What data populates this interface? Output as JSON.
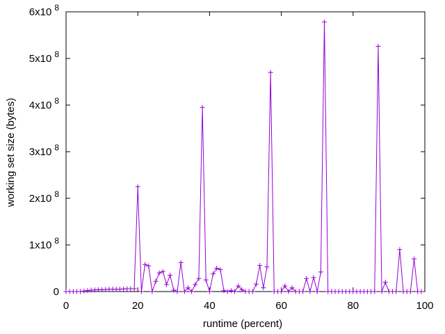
{
  "chart_data": {
    "type": "line",
    "xlabel": "runtime (percent)",
    "ylabel": "working set size (bytes)",
    "xlim": [
      0,
      100
    ],
    "ylim": [
      0,
      600000000
    ],
    "x_ticks": [
      "0",
      "20",
      "40",
      "60",
      "80",
      "100"
    ],
    "y_ticks": [
      {
        "base": "0",
        "exp": ""
      },
      {
        "base": "1x10",
        "exp": "8"
      },
      {
        "base": "2x10",
        "exp": "8"
      },
      {
        "base": "3x10",
        "exp": "8"
      },
      {
        "base": "4x10",
        "exp": "8"
      },
      {
        "base": "5x10",
        "exp": "8"
      },
      {
        "base": "6x10",
        "exp": "8"
      }
    ],
    "grid": false,
    "series": [
      {
        "color": "#9400d3",
        "marker": "plus",
        "x": [
          0,
          1,
          2,
          3,
          4,
          5,
          6,
          7,
          8,
          9,
          10,
          11,
          12,
          13,
          14,
          15,
          16,
          17,
          18,
          19,
          20,
          21,
          22,
          23,
          24,
          25,
          26,
          27,
          28,
          29,
          30,
          31,
          32,
          33,
          34,
          35,
          36,
          37,
          38,
          39,
          40,
          41,
          42,
          43,
          44,
          45,
          46,
          47,
          48,
          49,
          50,
          51,
          52,
          53,
          54,
          55,
          56,
          57,
          58,
          59,
          60,
          61,
          62,
          63,
          64,
          65,
          66,
          67,
          68,
          69,
          70,
          71,
          72,
          73,
          74,
          75,
          76,
          77,
          78,
          79,
          80,
          81,
          82,
          83,
          84,
          85,
          86,
          87,
          88,
          89,
          90,
          91,
          92,
          93,
          94,
          95,
          96,
          97,
          98,
          99
        ],
        "y": [
          0,
          0,
          0,
          0,
          0,
          1000000,
          2000000,
          3000000,
          3500000,
          4000000,
          4000000,
          4500000,
          5000000,
          5000000,
          5000000,
          5000000,
          5500000,
          6000000,
          6000000,
          6000000,
          225000000,
          0,
          58000000,
          55000000,
          0,
          22000000,
          40000000,
          43000000,
          15000000,
          35000000,
          3000000,
          0,
          62000000,
          0,
          8000000,
          0,
          15000000,
          28000000,
          395000000,
          25000000,
          0,
          38000000,
          50000000,
          47000000,
          2000000,
          0,
          2000000,
          0,
          12000000,
          4000000,
          0,
          0,
          0,
          16000000,
          56000000,
          8000000,
          53000000,
          470000000,
          0,
          0,
          0,
          12000000,
          0,
          8000000,
          0,
          0,
          0,
          28000000,
          0,
          30000000,
          0,
          42000000,
          578000000,
          0,
          0,
          0,
          0,
          0,
          0,
          0,
          0,
          0,
          0,
          0,
          0,
          0,
          0,
          526000000,
          0,
          20000000,
          0,
          0,
          0,
          90000000,
          0,
          0,
          0,
          70000000,
          0,
          0
        ]
      }
    ]
  }
}
